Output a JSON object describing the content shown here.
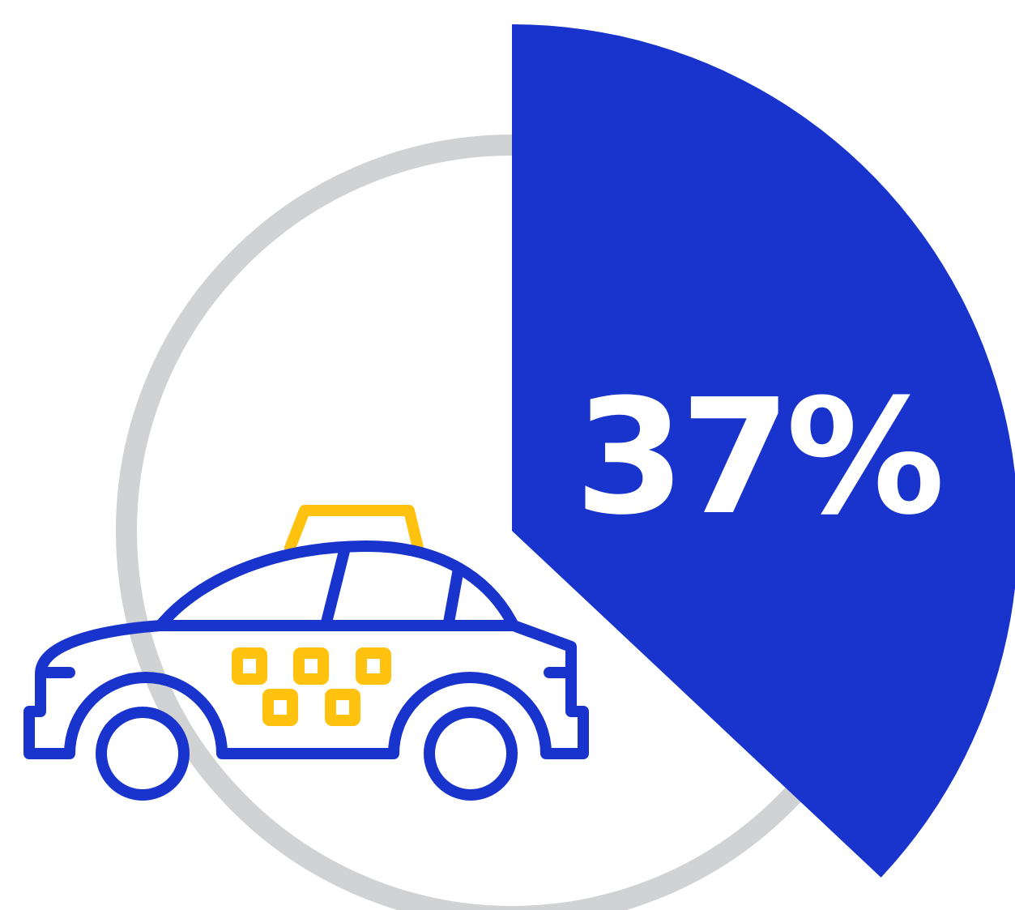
{
  "chart_data": {
    "type": "pie",
    "values": [
      37,
      63
    ],
    "highlight_value": 37,
    "label": "37%",
    "colors": {
      "highlight": "#1834CC",
      "track": "#D1D2D4",
      "label": "#FFFFFF"
    }
  },
  "icon": {
    "name": "taxi-icon",
    "colors": {
      "outline": "#1834CC",
      "accent": "#FFC20E"
    }
  }
}
